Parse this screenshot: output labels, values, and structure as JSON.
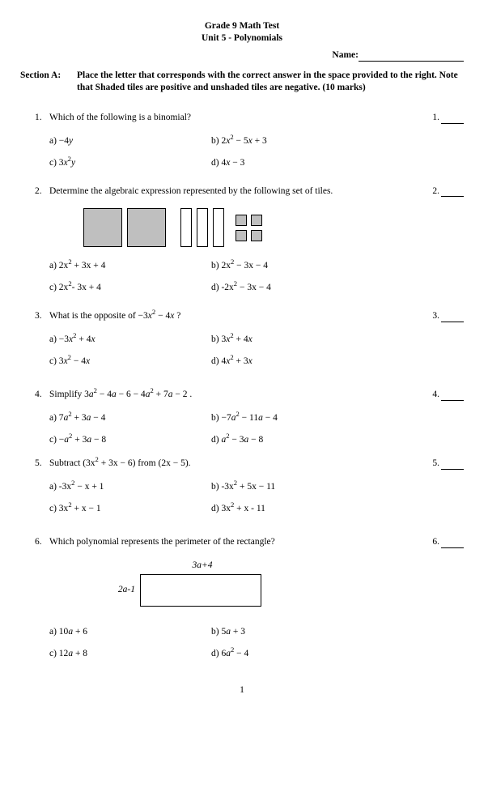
{
  "header": {
    "line1": "Grade 9 Math Test",
    "line2": "Unit 5 - Polynomials"
  },
  "name_label": "Name:",
  "section": {
    "label": "Section A:",
    "text": "Place the letter that corresponds with the correct answer in the space provided to the right. Note that Shaded tiles are positive and unshaded tiles are negative.  (10 marks)"
  },
  "q1": {
    "num": "1.",
    "text": "Which of the following is a binomial?",
    "slot": "1.",
    "a": "a)  −4<span class='ital'>y</span>",
    "b": "b)  2<span class='ital'>x</span><sup>2</sup> − 5<span class='ital'>x</span> + 3",
    "c": "c)  3<span class='ital'>x</span><sup>2</sup><span class='ital'>y</span>",
    "d": "d)  4<span class='ital'>x</span> − 3"
  },
  "q2": {
    "num": "2.",
    "text": "Determine the algebraic expression represented by the following set of tiles.",
    "slot": "2.",
    "a": "a)  2x<sup>2</sup> + 3x + 4",
    "b": "b)  2x<sup>2</sup> − 3x − 4",
    "c": "c)  2x<sup>2</sup>- 3x + 4",
    "d": "d)  -2x<sup>2</sup> − 3x − 4"
  },
  "q3": {
    "num": "3.",
    "text": "What is the opposite of  −3<span class='ital'>x</span><sup>2</sup> − 4<span class='ital'>x</span> ?",
    "slot": "3.",
    "a": "a)  −3<span class='ital'>x</span><sup>2</sup> + 4<span class='ital'>x</span>",
    "b": "b)  3<span class='ital'>x</span><sup>2</sup> + 4<span class='ital'>x</span>",
    "c": "c)  3<span class='ital'>x</span><sup>2</sup> − 4<span class='ital'>x</span>",
    "d": "d)  4<span class='ital'>x</span><sup>2</sup> + 3<span class='ital'>x</span>"
  },
  "q4": {
    "num": "4.",
    "text": "Simplify  3<span class='ital'>a</span><sup>2</sup> − 4<span class='ital'>a</span> − 6 − 4<span class='ital'>a</span><sup>2</sup> + 7<span class='ital'>a</span> − 2 .",
    "slot": "4.",
    "a": "a)  7<span class='ital'>a</span><sup>2</sup> + 3<span class='ital'>a</span> − 4",
    "b": "b)  −7<span class='ital'>a</span><sup>2</sup> − 11<span class='ital'>a</span> − 4",
    "c": "c)  −<span class='ital'>a</span><sup>2</sup> + 3<span class='ital'>a</span> − 8",
    "d": "d)  <span class='ital'>a</span><sup>2</sup> − 3<span class='ital'>a</span> − 8"
  },
  "q5": {
    "num": "5.",
    "text": "Subtract (3x<sup>2</sup> + 3x − 6) from (2x − 5).",
    "slot": "5.",
    "a": "a)  -3x<sup>2</sup> − x + 1",
    "b": "b)  -3x<sup>2</sup> + 5x − 11",
    "c": "c)  3x<sup>2</sup> + x − 1",
    "d": "d)  3x<sup>2</sup> + x - 11"
  },
  "q6": {
    "num": "6.",
    "text": "Which polynomial represents the perimeter of the rectangle?",
    "slot": "6.",
    "rect_top": "3a+4",
    "rect_side": "2a-1",
    "a": "a)  10<span class='ital'>a</span> + 6",
    "b": "b)  5<span class='ital'>a</span> + 3",
    "c": "c)  12<span class='ital'>a</span> + 8",
    "d": "d)  6<span class='ital'>a</span><sup>2</sup> − 4"
  },
  "page": "1"
}
